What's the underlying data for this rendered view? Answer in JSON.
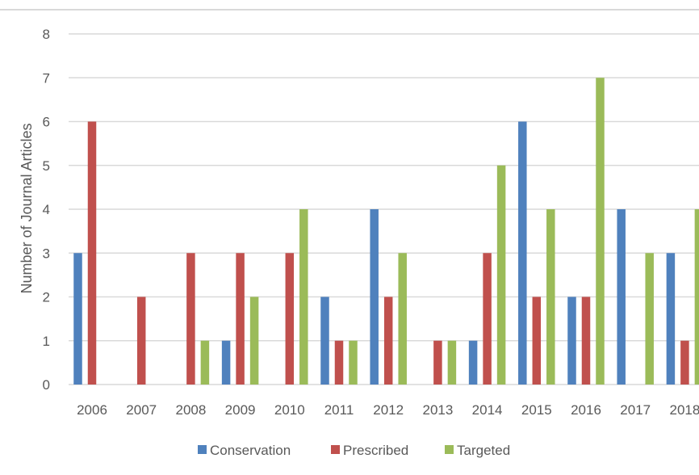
{
  "chart_data": {
    "type": "bar",
    "title": "",
    "xlabel": "",
    "ylabel": "Number of Journal Articles",
    "ylim": [
      0,
      8
    ],
    "yticks": [
      "0",
      "1",
      "2",
      "3",
      "4",
      "5",
      "6",
      "7",
      "8"
    ],
    "grid": true,
    "legend_position": "bottom",
    "categories": [
      "2006",
      "2007",
      "2008",
      "2009",
      "2010",
      "2011",
      "2012",
      "2013",
      "2014",
      "2015",
      "2016",
      "2017",
      "2018"
    ],
    "series": [
      {
        "name": "Conservation",
        "color": "#4f81bd",
        "values": [
          3,
          0,
          0,
          1,
          0,
          2,
          4,
          0,
          1,
          6,
          2,
          4,
          3
        ]
      },
      {
        "name": "Prescribed",
        "color": "#c0504d",
        "values": [
          6,
          2,
          3,
          3,
          3,
          1,
          2,
          1,
          3,
          2,
          2,
          0,
          1
        ]
      },
      {
        "name": "Targeted",
        "color": "#9bbb59",
        "values": [
          0,
          0,
          1,
          2,
          4,
          1,
          3,
          1,
          5,
          4,
          7,
          3,
          4
        ]
      }
    ]
  }
}
